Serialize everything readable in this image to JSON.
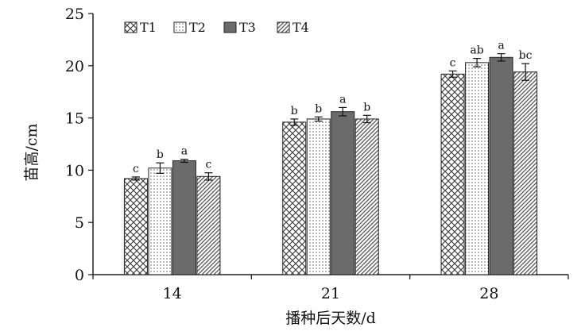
{
  "chart_data": {
    "type": "bar",
    "title": "",
    "xlabel": "播种后天数/d",
    "ylabel": "苗高/cm",
    "ylim": [
      0,
      25
    ],
    "yticks": [
      0,
      5,
      10,
      15,
      20,
      25
    ],
    "grid": false,
    "legend_position": "top-left",
    "categories": [
      "14",
      "21",
      "28"
    ],
    "series": [
      {
        "name": "T1",
        "values": [
          9.2,
          14.6,
          19.2
        ],
        "errors": [
          0.15,
          0.3,
          0.3
        ],
        "labels": [
          "c",
          "b",
          "c"
        ],
        "pattern": "crosshatch"
      },
      {
        "name": "T2",
        "values": [
          10.2,
          14.9,
          20.3
        ],
        "errors": [
          0.5,
          0.2,
          0.4
        ],
        "labels": [
          "b",
          "b",
          "ab"
        ],
        "pattern": "dots"
      },
      {
        "name": "T3",
        "values": [
          10.9,
          15.6,
          20.8
        ],
        "errors": [
          0.15,
          0.4,
          0.35
        ],
        "labels": [
          "a",
          "a",
          "a"
        ],
        "pattern": "solid"
      },
      {
        "name": "T4",
        "values": [
          9.4,
          14.9,
          19.4
        ],
        "errors": [
          0.35,
          0.35,
          0.8
        ],
        "labels": [
          "c",
          "b",
          "bc"
        ],
        "pattern": "diagonal"
      }
    ],
    "colors": {
      "solid": "#6b6b6b",
      "stroke": "#222222"
    }
  }
}
